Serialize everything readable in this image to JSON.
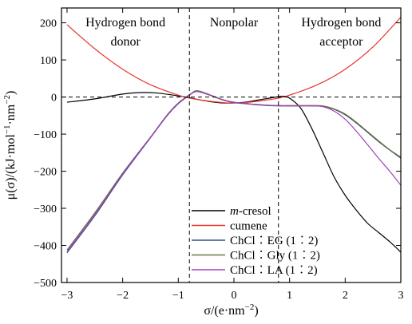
{
  "chart_data": {
    "type": "line",
    "xlabel": "σ/(e·nm⁻²)",
    "ylabel": "μ(σ)/(kJ·mol⁻¹·nm⁻²)",
    "xlim": [
      -3.1,
      3.0
    ],
    "ylim": [
      -500,
      240
    ],
    "x_ticks": [
      -3,
      -2,
      -1,
      0,
      1,
      2,
      3
    ],
    "x_tick_labels": [
      "−3",
      "−2",
      "−1",
      "0",
      "1",
      "2",
      "3"
    ],
    "y_ticks": [
      200,
      100,
      0,
      -100,
      -200,
      -300,
      -400,
      -500
    ],
    "y_tick_labels": [
      "200",
      "100",
      "0",
      "−100",
      "−200",
      "−300",
      "−400",
      "−500"
    ],
    "grid": false,
    "legend_position": "lower-center",
    "region_boundaries_x": [
      -0.8,
      0.8
    ],
    "zero_line_y": 0,
    "regions": [
      {
        "label_lines": [
          "Hydrogen bond",
          "donor"
        ]
      },
      {
        "label_lines": [
          "Nonpolar"
        ]
      },
      {
        "label_lines": [
          "Hydrogen bond",
          "acceptor"
        ]
      }
    ],
    "series": [
      {
        "name": "m-cresol",
        "color": "#000000",
        "points": [
          [
            -3.0,
            -14
          ],
          [
            -2.5,
            -5
          ],
          [
            -2.0,
            8
          ],
          [
            -1.7,
            12
          ],
          [
            -1.4,
            11
          ],
          [
            -1.0,
            3
          ],
          [
            -0.8,
            -2
          ],
          [
            -0.6,
            -8
          ],
          [
            -0.4,
            -13
          ],
          [
            -0.2,
            -16
          ],
          [
            0.0,
            -16
          ],
          [
            0.2,
            -14
          ],
          [
            0.4,
            -9
          ],
          [
            0.6,
            -4
          ],
          [
            0.8,
            1
          ],
          [
            0.9,
            2
          ],
          [
            1.0,
            -3
          ],
          [
            1.2,
            -30
          ],
          [
            1.4,
            -85
          ],
          [
            1.6,
            -150
          ],
          [
            1.8,
            -215
          ],
          [
            2.0,
            -265
          ],
          [
            2.2,
            -305
          ],
          [
            2.4,
            -340
          ],
          [
            2.6,
            -365
          ],
          [
            2.8,
            -390
          ],
          [
            3.0,
            -418
          ]
        ]
      },
      {
        "name": "cumene",
        "color": "#e8332e",
        "points": [
          [
            -3.0,
            195
          ],
          [
            -2.5,
            130
          ],
          [
            -2.0,
            75
          ],
          [
            -1.5,
            33
          ],
          [
            -1.0,
            5
          ],
          [
            -0.8,
            -3
          ],
          [
            -0.5,
            -10
          ],
          [
            -0.2,
            -15
          ],
          [
            0.0,
            -16
          ],
          [
            0.2,
            -15
          ],
          [
            0.5,
            -10
          ],
          [
            0.8,
            -3
          ],
          [
            1.0,
            5
          ],
          [
            1.5,
            33
          ],
          [
            2.0,
            75
          ],
          [
            2.5,
            135
          ],
          [
            3.0,
            215
          ]
        ]
      },
      {
        "name": "ChCl︰EG (1︰2)",
        "color": "#3a4f8c",
        "points": [
          [
            -3.0,
            -420
          ],
          [
            -2.5,
            -320
          ],
          [
            -2.0,
            -210
          ],
          [
            -1.5,
            -110
          ],
          [
            -1.2,
            -50
          ],
          [
            -1.0,
            -18
          ],
          [
            -0.8,
            5
          ],
          [
            -0.7,
            16
          ],
          [
            -0.6,
            15
          ],
          [
            -0.4,
            4
          ],
          [
            -0.2,
            -8
          ],
          [
            0.0,
            -15
          ],
          [
            0.2,
            -18
          ],
          [
            0.4,
            -21
          ],
          [
            0.6,
            -23
          ],
          [
            0.8,
            -24
          ],
          [
            1.0,
            -24
          ],
          [
            1.2,
            -24
          ],
          [
            1.4,
            -24
          ],
          [
            1.6,
            -25
          ],
          [
            1.8,
            -33
          ],
          [
            2.0,
            -48
          ],
          [
            2.2,
            -70
          ],
          [
            2.4,
            -95
          ],
          [
            2.6,
            -120
          ],
          [
            2.8,
            -143
          ],
          [
            3.0,
            -165
          ]
        ]
      },
      {
        "name": "ChCl︰Gly (1︰2)",
        "color": "#6b7a3a",
        "points": [
          [
            -3.0,
            -412
          ],
          [
            -2.5,
            -312
          ],
          [
            -2.0,
            -205
          ],
          [
            -1.5,
            -108
          ],
          [
            -1.2,
            -48
          ],
          [
            -1.0,
            -16
          ],
          [
            -0.8,
            6
          ],
          [
            -0.7,
            15
          ],
          [
            -0.6,
            14
          ],
          [
            -0.4,
            4
          ],
          [
            -0.2,
            -7
          ],
          [
            0.0,
            -14
          ],
          [
            0.2,
            -17
          ],
          [
            0.4,
            -20
          ],
          [
            0.6,
            -22
          ],
          [
            0.8,
            -23
          ],
          [
            1.0,
            -23
          ],
          [
            1.2,
            -23
          ],
          [
            1.4,
            -23
          ],
          [
            1.6,
            -24
          ],
          [
            1.8,
            -32
          ],
          [
            2.0,
            -46
          ],
          [
            2.2,
            -68
          ],
          [
            2.4,
            -93
          ],
          [
            2.6,
            -118
          ],
          [
            2.8,
            -142
          ],
          [
            3.0,
            -162
          ]
        ]
      },
      {
        "name": "ChCl︰LA (1︰2)",
        "color": "#a040b8",
        "points": [
          [
            -3.0,
            -416
          ],
          [
            -2.5,
            -316
          ],
          [
            -2.0,
            -207
          ],
          [
            -1.5,
            -109
          ],
          [
            -1.2,
            -49
          ],
          [
            -1.0,
            -17
          ],
          [
            -0.8,
            5
          ],
          [
            -0.7,
            14
          ],
          [
            -0.6,
            13
          ],
          [
            -0.4,
            3
          ],
          [
            -0.2,
            -8
          ],
          [
            0.0,
            -14
          ],
          [
            0.2,
            -17
          ],
          [
            0.4,
            -20
          ],
          [
            0.6,
            -22
          ],
          [
            0.8,
            -23
          ],
          [
            1.0,
            -24
          ],
          [
            1.2,
            -24
          ],
          [
            1.4,
            -24
          ],
          [
            1.6,
            -26
          ],
          [
            1.8,
            -38
          ],
          [
            2.0,
            -60
          ],
          [
            2.2,
            -92
          ],
          [
            2.4,
            -128
          ],
          [
            2.6,
            -165
          ],
          [
            2.8,
            -200
          ],
          [
            3.0,
            -238
          ]
        ]
      }
    ]
  }
}
